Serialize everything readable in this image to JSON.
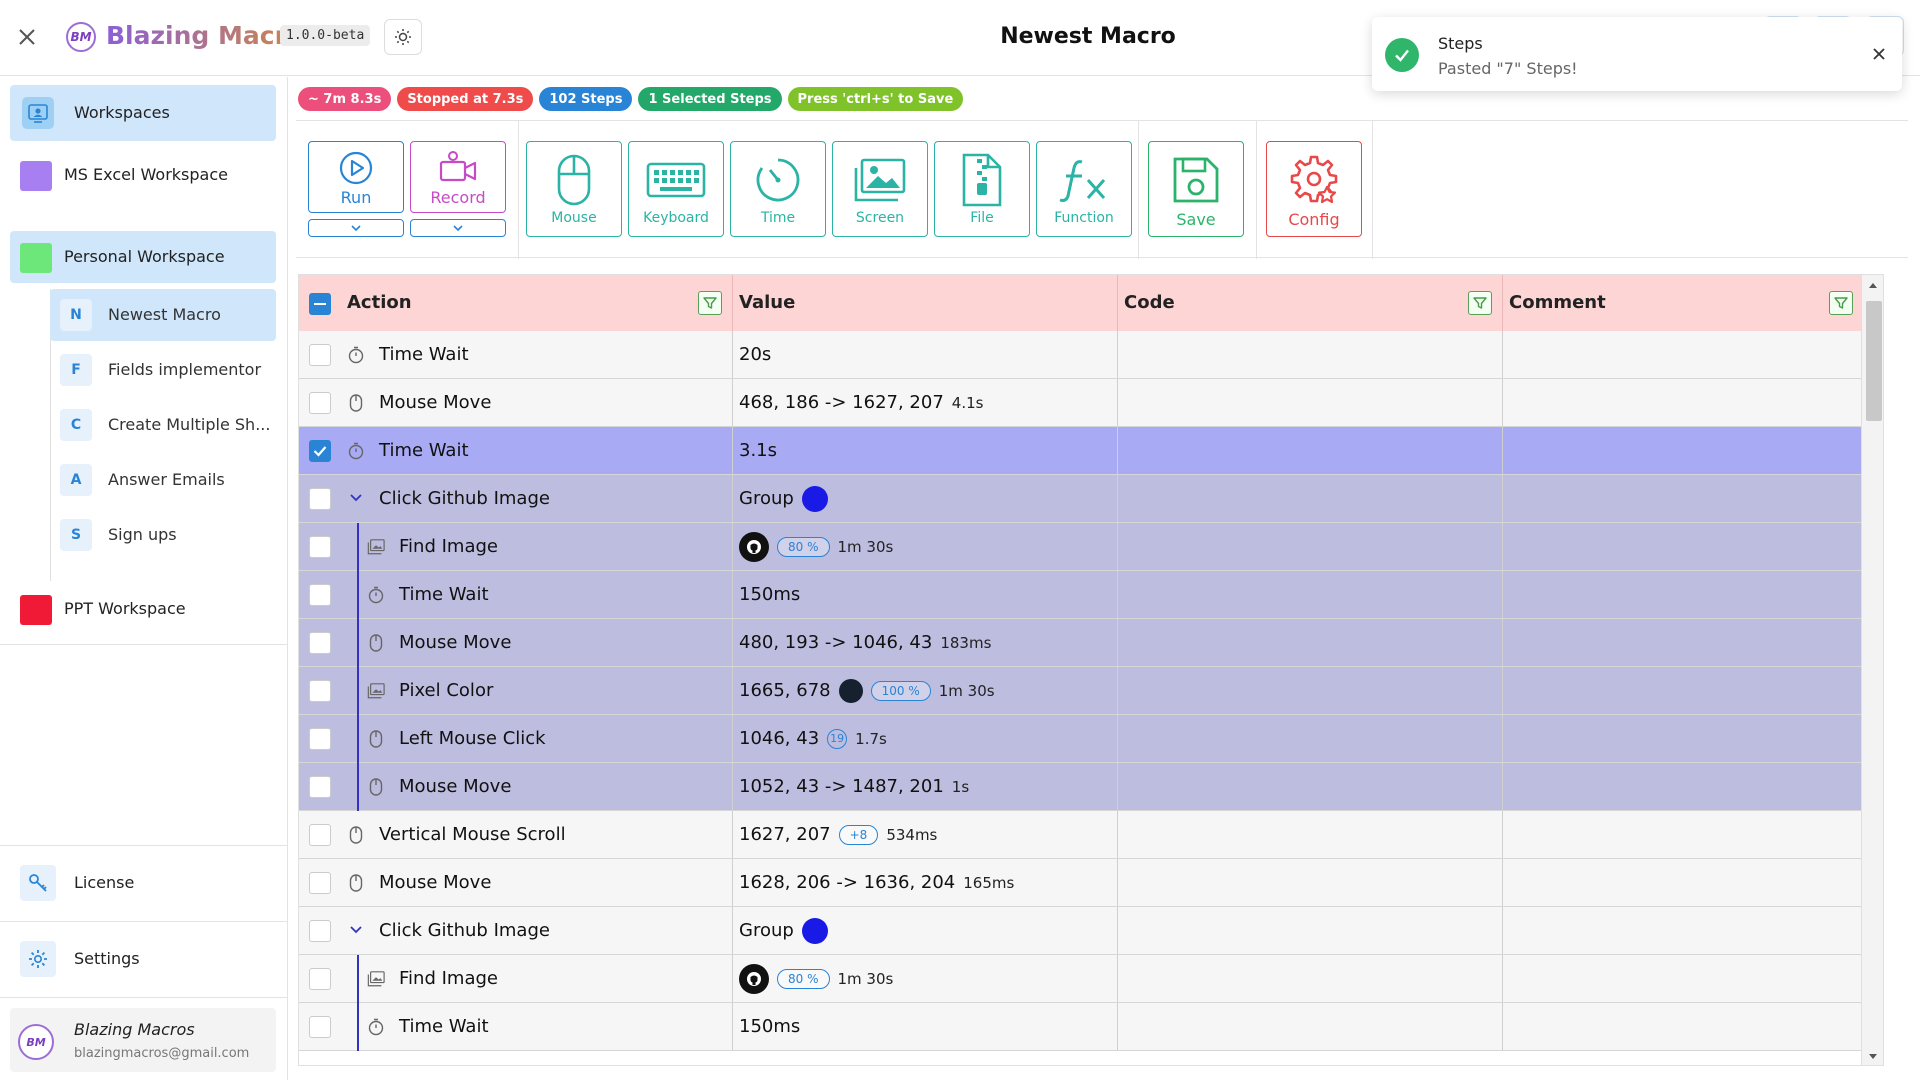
{
  "app": {
    "name": "Blazing Macros",
    "version": "1.0.0-beta",
    "logo_text": "BM",
    "title": "Newest Macro"
  },
  "toast": {
    "title": "Steps",
    "message": "Pasted \"7\" Steps!"
  },
  "sidebar": {
    "workspaces_label": "Workspaces",
    "workspaces": [
      {
        "label": "MS Excel Workspace",
        "color": "#a87ff0"
      },
      {
        "label": "Personal Workspace",
        "color": "#6ee77a"
      },
      {
        "label": "PPT Workspace",
        "color": "#f01a36"
      }
    ],
    "macros": [
      {
        "letter": "N",
        "label": "Newest Macro"
      },
      {
        "letter": "F",
        "label": "Fields implementor"
      },
      {
        "letter": "C",
        "label": "Create Multiple Sh..."
      },
      {
        "letter": "A",
        "label": "Answer Emails"
      },
      {
        "letter": "S",
        "label": "Sign ups"
      }
    ],
    "license_label": "License",
    "settings_label": "Settings",
    "user": {
      "name": "Blazing Macros",
      "email": "blazingmacros@gmail.com",
      "avatar_text": "BM"
    }
  },
  "badges": [
    {
      "text": "~ 7m 8.3s",
      "color": "#ec4f7b"
    },
    {
      "text": "Stopped at 7.3s",
      "color": "#ef4b4b"
    },
    {
      "text": "102 Steps",
      "color": "#2a84d6"
    },
    {
      "text": "1 Selected Steps",
      "color": "#23a86a"
    },
    {
      "text": "Press 'ctrl+s' to Save",
      "color": "#7fc22a"
    }
  ],
  "toolbar": {
    "run_label": "Run",
    "record_label": "Record",
    "mouse_label": "Mouse",
    "keyboard_label": "Keyboard",
    "time_label": "Time",
    "screen_label": "Screen",
    "file_label": "File",
    "function_label": "Function",
    "save_label": "Save",
    "config_label": "Config"
  },
  "table": {
    "columns": [
      "Action",
      "Value",
      "Code",
      "Comment"
    ],
    "rows": [
      {
        "action": "Time Wait",
        "value": "20s"
      },
      {
        "action": "Mouse Move",
        "value": "468, 186 -> 1627, 207",
        "sub": "4.1s"
      },
      {
        "action": "Time Wait",
        "value": "3.1s"
      },
      {
        "action": "Click Github Image",
        "value": "Group"
      },
      {
        "action": "Find Image",
        "pill": "80 %",
        "sub": "1m 30s"
      },
      {
        "action": "Time Wait",
        "value": "150ms"
      },
      {
        "action": "Mouse Move",
        "value": "480, 193 -> 1046, 43",
        "sub": "183ms"
      },
      {
        "action": "Pixel Color",
        "value": "1665, 678",
        "pill": "100 %",
        "sub": "1m 30s"
      },
      {
        "action": "Left Mouse Click",
        "value": "1046, 43",
        "circle": "19",
        "sub": "1.7s"
      },
      {
        "action": "Mouse Move",
        "value": "1052, 43 -> 1487, 201",
        "sub": "1s"
      },
      {
        "action": "Vertical Mouse Scroll",
        "value": "1627, 207",
        "pill": "+8",
        "sub": "534ms"
      },
      {
        "action": "Mouse Move",
        "value": "1628, 206 -> 1636, 204",
        "sub": "165ms"
      },
      {
        "action": "Click Github Image",
        "value": "Group"
      },
      {
        "action": "Find Image",
        "pill": "80 %",
        "sub": "1m 30s"
      },
      {
        "action": "Time Wait",
        "value": "150ms"
      }
    ]
  },
  "colors": {
    "group_dot": "#1a1ae6",
    "pixel_dot": "#16202e"
  }
}
